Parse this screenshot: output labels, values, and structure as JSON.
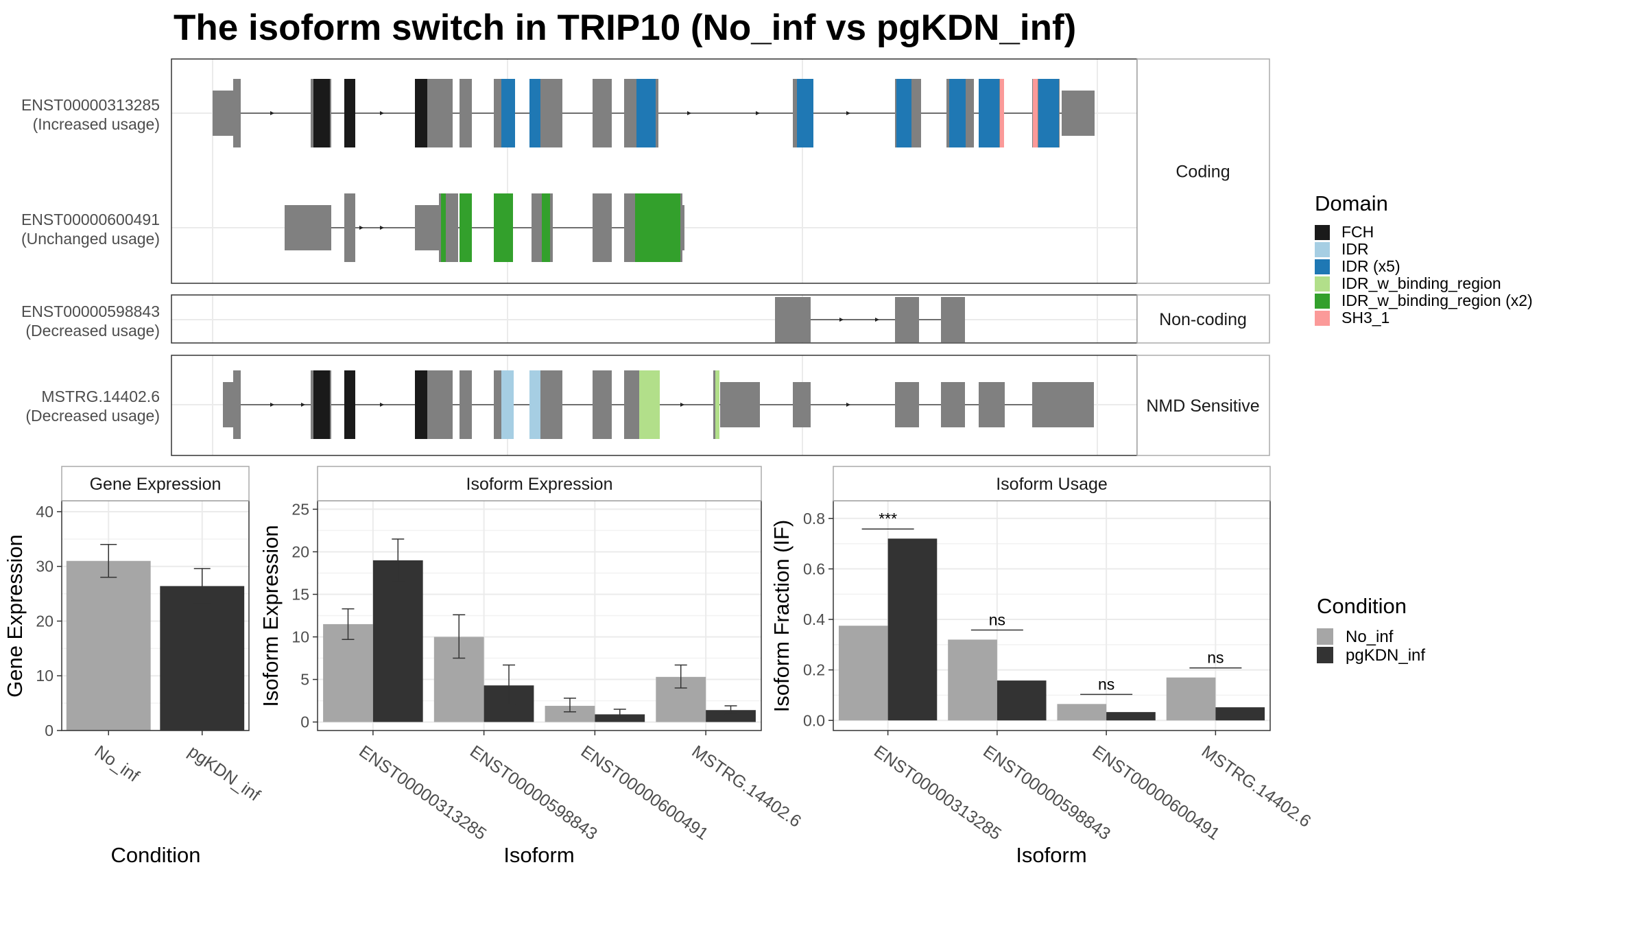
{
  "title": "The isoform switch in TRIP10 (No_inf vs pgKDN_inf)",
  "colors": {
    "FCH": "#1a1a1a",
    "IDR": "#a6cee3",
    "IDR (x5)": "#1f78b4",
    "IDR_w_binding_region": "#b2df8a",
    "IDR_w_binding_region (x2)": "#33a02c",
    "SH3_1": "#fb9a99",
    "exon": "#808080",
    "No_inf": "#a6a6a6",
    "pgKDN_inf": "#333333"
  },
  "structure": {
    "groups": [
      {
        "label": "Coding",
        "isoforms": [
          {
            "id": "ENST00000313285",
            "usage": "(Increased usage)"
          },
          {
            "id": "ENST00000600491",
            "usage": "(Unchanged usage)"
          }
        ]
      },
      {
        "label": "Non-coding",
        "isoforms": [
          {
            "id": "ENST00000598843",
            "usage": "(Decreased usage)"
          }
        ]
      },
      {
        "label": "NMD Sensitive",
        "isoforms": [
          {
            "id": "MSTRG.14402.6",
            "usage": "(Decreased usage)"
          }
        ]
      }
    ],
    "domain_legend_title": "Domain",
    "domain_legend": [
      "FCH",
      "IDR",
      "IDR (x5)",
      "IDR_w_binding_region",
      "IDR_w_binding_region (x2)",
      "SH3_1"
    ]
  },
  "chart_data": [
    {
      "type": "bar",
      "panel": "Gene Expression",
      "xlabel": "Condition",
      "ylabel": "Gene Expression",
      "categories": [
        "No_inf",
        "pgKDN_inf"
      ],
      "values": [
        31,
        26.4
      ],
      "errors": [
        [
          28,
          34
        ],
        [
          23.2,
          29.6
        ]
      ],
      "ylim": [
        0,
        42
      ],
      "yticks": [
        0,
        10,
        20,
        30,
        40
      ]
    },
    {
      "type": "bar",
      "panel": "Isoform Expression",
      "xlabel": "Isoform",
      "ylabel": "Isoform Expression",
      "categories": [
        "ENST00000313285",
        "ENST00000598843",
        "ENST00000600491",
        "MSTRG.14402.6"
      ],
      "series": [
        {
          "name": "No_inf",
          "values": [
            11.5,
            10,
            1.9,
            5.3
          ],
          "errors": [
            [
              9.7,
              13.3
            ],
            [
              7.5,
              12.6
            ],
            [
              1.2,
              2.8
            ],
            [
              4,
              6.7
            ]
          ]
        },
        {
          "name": "pgKDN_inf",
          "values": [
            19,
            4.3,
            0.9,
            1.4
          ],
          "errors": [
            [
              16.5,
              21.5
            ],
            [
              2,
              6.7
            ],
            [
              0.4,
              1.5
            ],
            [
              0.9,
              1.9
            ]
          ]
        }
      ],
      "ylim": [
        -1,
        26
      ],
      "yticks": [
        0,
        5,
        10,
        15,
        20,
        25
      ]
    },
    {
      "type": "bar",
      "panel": "Isoform Usage",
      "xlabel": "Isoform",
      "ylabel": "Isoform Fraction (IF)",
      "categories": [
        "ENST00000313285",
        "ENST00000598843",
        "ENST00000600491",
        "MSTRG.14402.6"
      ],
      "series": [
        {
          "name": "No_inf",
          "values": [
            0.375,
            0.32,
            0.065,
            0.17
          ]
        },
        {
          "name": "pgKDN_inf",
          "values": [
            0.72,
            0.158,
            0.033,
            0.052
          ]
        }
      ],
      "significance": [
        "***",
        "ns",
        "ns",
        "ns"
      ],
      "ylim": [
        -0.04,
        0.87
      ],
      "yticks": [
        "0.0",
        "0.2",
        "0.4",
        "0.6",
        "0.8"
      ]
    }
  ],
  "condition_legend_title": "Condition",
  "condition_legend": [
    "No_inf",
    "pgKDN_inf"
  ]
}
